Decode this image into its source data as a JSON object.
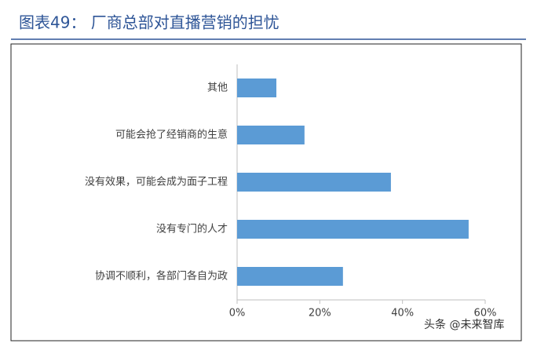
{
  "chart_data": {
    "type": "bar",
    "orientation": "horizontal",
    "title": "图表49：  厂商总部对直播营销的担忧",
    "categories": [
      "其他",
      "可能会抢了经销商的生意",
      "没有效果，可能会成为面子工程",
      "没有专门的人才",
      "协调不顺利，各部门各自为政"
    ],
    "values": [
      9.5,
      16.3,
      37.2,
      56,
      25.6
    ],
    "color": "#5b9bd5",
    "xlim": [
      0,
      60
    ],
    "xticks": [
      {
        "value": 0,
        "label": "0%"
      },
      {
        "value": 20,
        "label": "20%"
      },
      {
        "value": 40,
        "label": "40%"
      },
      {
        "value": 60,
        "label": "60%"
      }
    ],
    "watermark": "头条 @未来智库"
  }
}
